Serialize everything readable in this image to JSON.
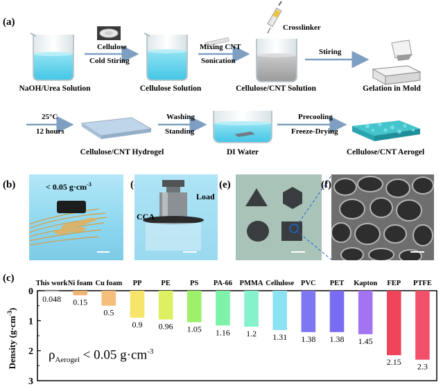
{
  "panel_a": {
    "letter": "(a)",
    "row1": {
      "stages": [
        "NaOH/Urea Solution",
        "Cellulose Solution",
        "Cellulose/CNT Solution",
        "Gelation in Mold"
      ],
      "arrows": [
        {
          "top": "Cellulose",
          "bottom": "Cold Stiring"
        },
        {
          "top": "Mixing CNT",
          "bottom": "Sonication"
        },
        {
          "top": "Stiring",
          "bottom": ""
        }
      ],
      "syringe_label": "Crosslinker"
    },
    "row2": {
      "stages": [
        "Cellulose/CNT Hydrogel",
        "DI Water",
        "Cellulose/CNT Aerogel"
      ],
      "arrows": [
        {
          "top": "25°C",
          "bottom": "12 hours"
        },
        {
          "top": "Washing",
          "bottom": "Standing"
        },
        {
          "top": "Precooling",
          "bottom": "Freeze-Drying"
        }
      ]
    }
  },
  "panel_b": {
    "letter": "(b)",
    "density_text": "< 0.05 g·cm",
    "density_exp": "-3"
  },
  "panel_d": {
    "letter": "(d)",
    "cca_label": "CCA",
    "load_label": "Load"
  },
  "panel_e": {
    "letter": "(e)"
  },
  "panel_f": {
    "letter": "(f)"
  },
  "panel_c": {
    "letter": "(c)",
    "annotation": {
      "rho": "ρ",
      "sub": "Aerogel",
      "rest": " < 0.05 g·cm",
      "exp": "-3"
    }
  },
  "chart_data": {
    "type": "bar",
    "orientation": "vertical-downward",
    "categories": [
      "This work",
      "Ni foam",
      "Cu foam",
      "PP",
      "PE",
      "PS",
      "PA-66",
      "PMMA",
      "Cellulose",
      "PVC",
      "PET",
      "Kapton",
      "FEP",
      "PTFE"
    ],
    "values": [
      0.048,
      0.15,
      0.5,
      0.9,
      0.96,
      1.05,
      1.16,
      1.2,
      1.31,
      1.38,
      1.38,
      1.45,
      2.15,
      2.3
    ],
    "value_labels": [
      "0.048",
      "0.15",
      "0.5",
      "0.9",
      "0.96",
      "1.05",
      "1.16",
      "1.2",
      "1.31",
      "1.38",
      "1.38",
      "1.45",
      "2.15",
      "2.3"
    ],
    "colors": [
      "#d9d9d9",
      "#f2b26f",
      "#f5be7a",
      "#f7e46a",
      "#ddf062",
      "#9ef06a",
      "#7ef2a8",
      "#86f2cc",
      "#8ae2f2",
      "#7d78f2",
      "#7a6cf2",
      "#a274f2",
      "#f0445a",
      "#f2506a"
    ],
    "ylabel": "Density (g·cm",
    "ylabel_exp": "-3",
    "ylim": [
      0,
      3
    ],
    "yticks": [
      "0",
      "1",
      "2",
      "3"
    ],
    "y_inverted": true
  }
}
